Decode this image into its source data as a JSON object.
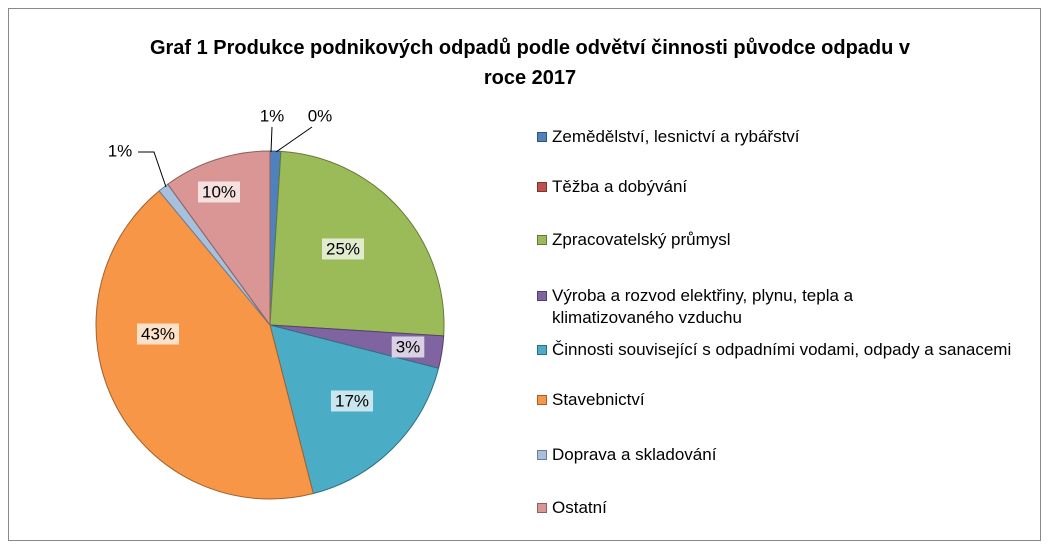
{
  "chart_data": {
    "type": "pie",
    "title": "Graf 1 Produkce podnikových odpadů podle odvětví činnosti původce odpadu v roce 2017",
    "categories": [
      "Zemědělství, lesnictví a rybářství",
      "Těžba a dobývání",
      "Zpracovatelský průmysl",
      "Výroba a rozvod elektřiny, plynu, tepla a klimatizovaného vzduchu",
      "Činnosti související s odpadními vodami, odpady a sanacemi",
      "Stavebnictví",
      "Doprava a skladování",
      "Ostatní"
    ],
    "values": [
      1,
      0,
      25,
      3,
      17,
      43,
      1,
      10
    ],
    "value_labels": [
      "1%",
      "0%",
      "25%",
      "3%",
      "17%",
      "43%",
      "1%",
      "10%"
    ],
    "colors": [
      "#4f81bd",
      "#c0504d",
      "#9bbb59",
      "#8064a2",
      "#4bacc6",
      "#f79646",
      "#a7c0de",
      "#d99694"
    ],
    "legend": "right"
  }
}
